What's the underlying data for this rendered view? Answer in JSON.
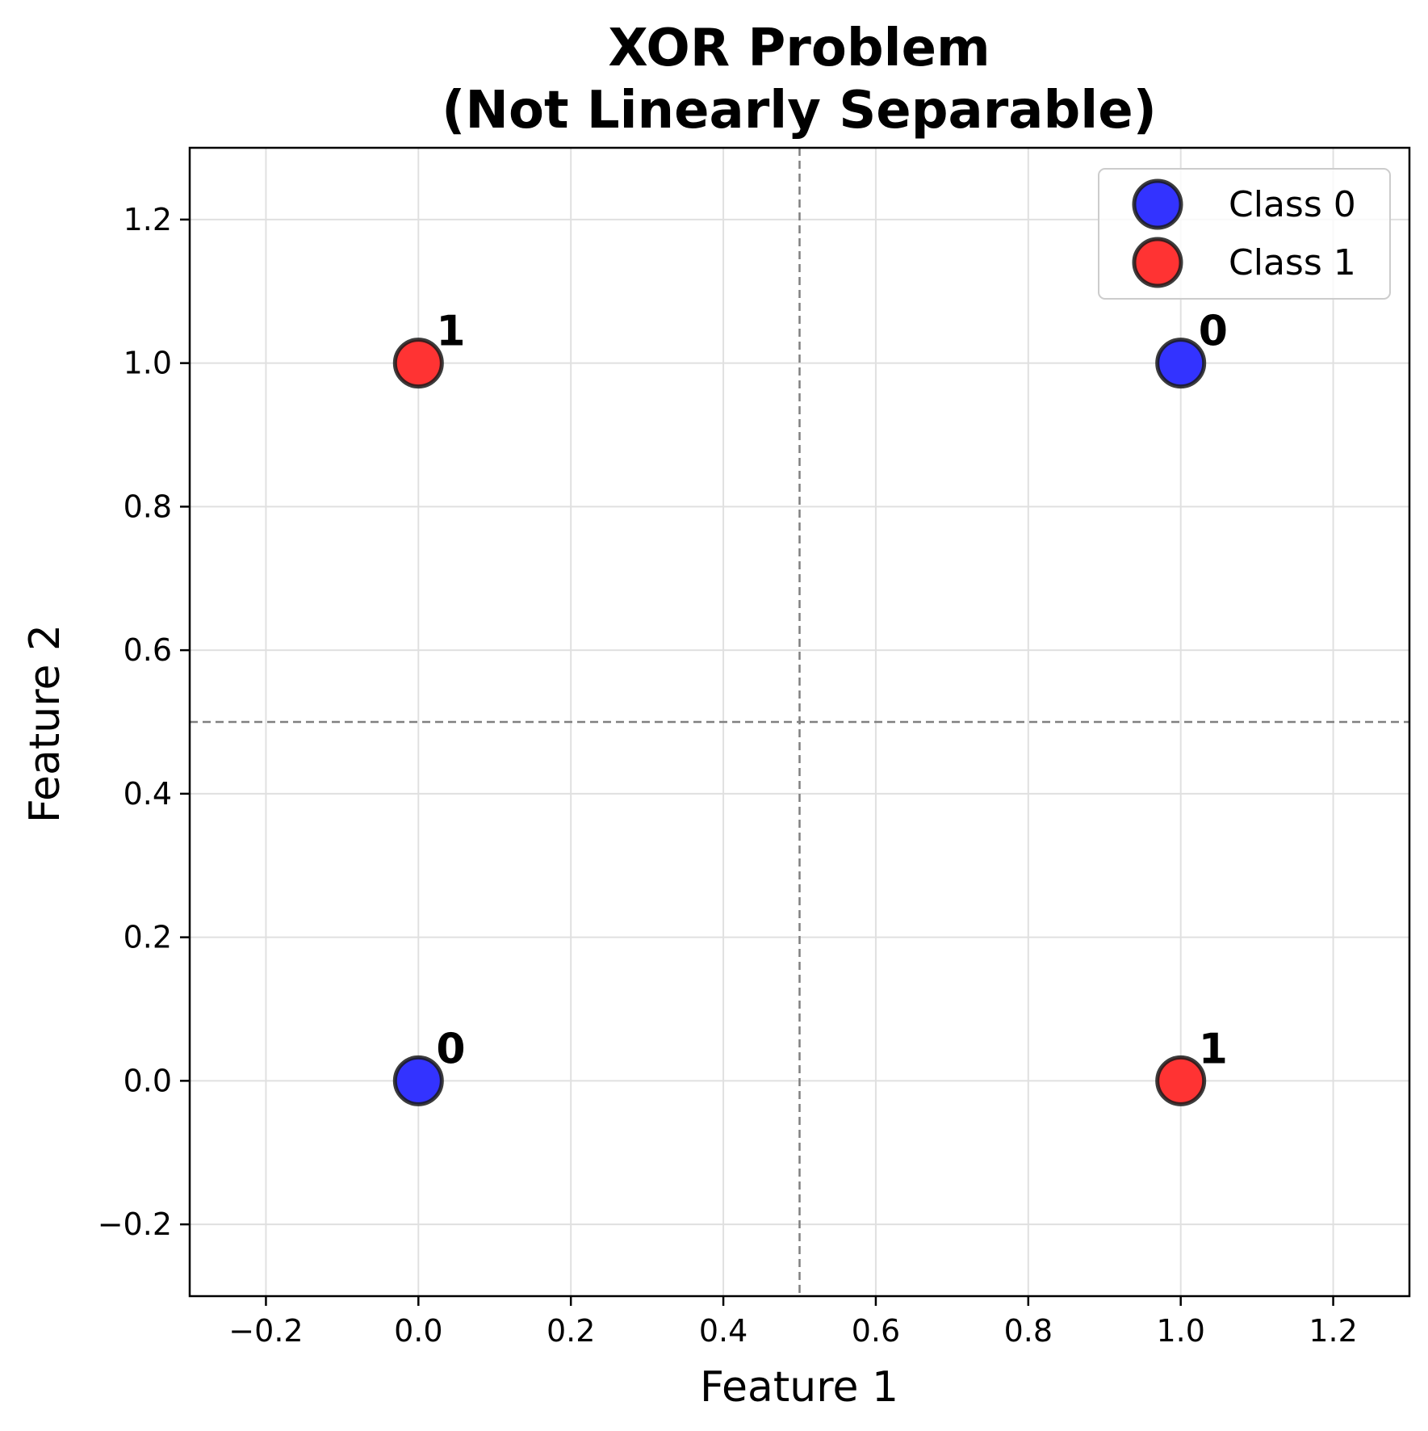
{
  "chart_data": {
    "type": "scatter",
    "title": [
      "XOR Problem",
      "(Not Linearly Separable)"
    ],
    "xlabel": "Feature 1",
    "ylabel": "Feature 2",
    "xlim": [
      -0.3,
      1.3
    ],
    "ylim": [
      -0.3,
      1.3
    ],
    "xticks": [
      -0.2,
      0.0,
      0.2,
      0.4,
      0.6,
      0.8,
      1.0,
      1.2
    ],
    "xtick_labels": [
      "−0.2",
      "0.0",
      "0.2",
      "0.4",
      "0.6",
      "0.8",
      "1.0",
      "1.2"
    ],
    "yticks": [
      -0.2,
      0.0,
      0.2,
      0.4,
      0.6,
      0.8,
      1.0,
      1.2
    ],
    "ytick_labels": [
      "−0.2",
      "0.0",
      "0.2",
      "0.4",
      "0.6",
      "0.8",
      "1.0",
      "1.2"
    ],
    "grid": true,
    "reference_lines": {
      "x": 0.5,
      "y": 0.5,
      "style": "dashed",
      "color": "#808080"
    },
    "legend_position": "top-right",
    "series": [
      {
        "name": "Class 0",
        "color": "#3333ff",
        "points": [
          {
            "x": 0,
            "y": 0,
            "label": "0"
          },
          {
            "x": 1,
            "y": 1,
            "label": "0"
          }
        ]
      },
      {
        "name": "Class 1",
        "color": "#ff3333",
        "points": [
          {
            "x": 0,
            "y": 1,
            "label": "1"
          },
          {
            "x": 1,
            "y": 0,
            "label": "1"
          }
        ]
      }
    ]
  }
}
